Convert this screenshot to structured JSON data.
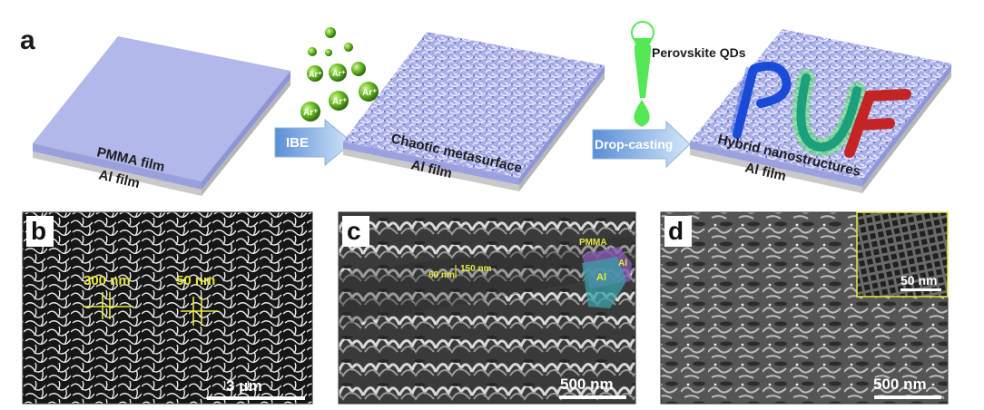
{
  "panel_letters": {
    "a": "a",
    "b": "b",
    "c": "c",
    "d": "d"
  },
  "panel_a": {
    "layer1_top": "PMMA  film",
    "layer1_bottom": "Al  film",
    "ions": [
      "Ar⁺",
      "Ar⁺",
      "Ar⁺",
      "Ar⁺",
      "Ar⁺"
    ],
    "arrow1_label": "IBE",
    "layer2_top": "Chaotic metasurface",
    "layer2_bottom": "Al  film",
    "dropper_label": "Perovskite QDs",
    "arrow2_label": "Drop-casting",
    "layer3_top": "Hybrid nanostructures",
    "layer3_bottom": "Al  film",
    "colors": {
      "pmma": "#b3b8ea",
      "al": "#c8c8c8",
      "ion": "#4a9a1a",
      "qd_green": "#55e855",
      "arrow": "#9fc3e8",
      "p_blue": "#1a4ad8",
      "u_green": "#3cbf5a",
      "f_red": "#c42424"
    }
  },
  "panel_b": {
    "measure1": "300 nm",
    "measure2": "50 nm",
    "scalebar": "3 μm"
  },
  "panel_c": {
    "measure1": "60 nm",
    "measure2": "150 nm",
    "layer_pmma": "PMMA",
    "layer_al1": "Al",
    "layer_al2": "Al",
    "scalebar": "500 nm"
  },
  "panel_d": {
    "inset_scalebar": "50 nm",
    "scalebar": "500 nm"
  }
}
